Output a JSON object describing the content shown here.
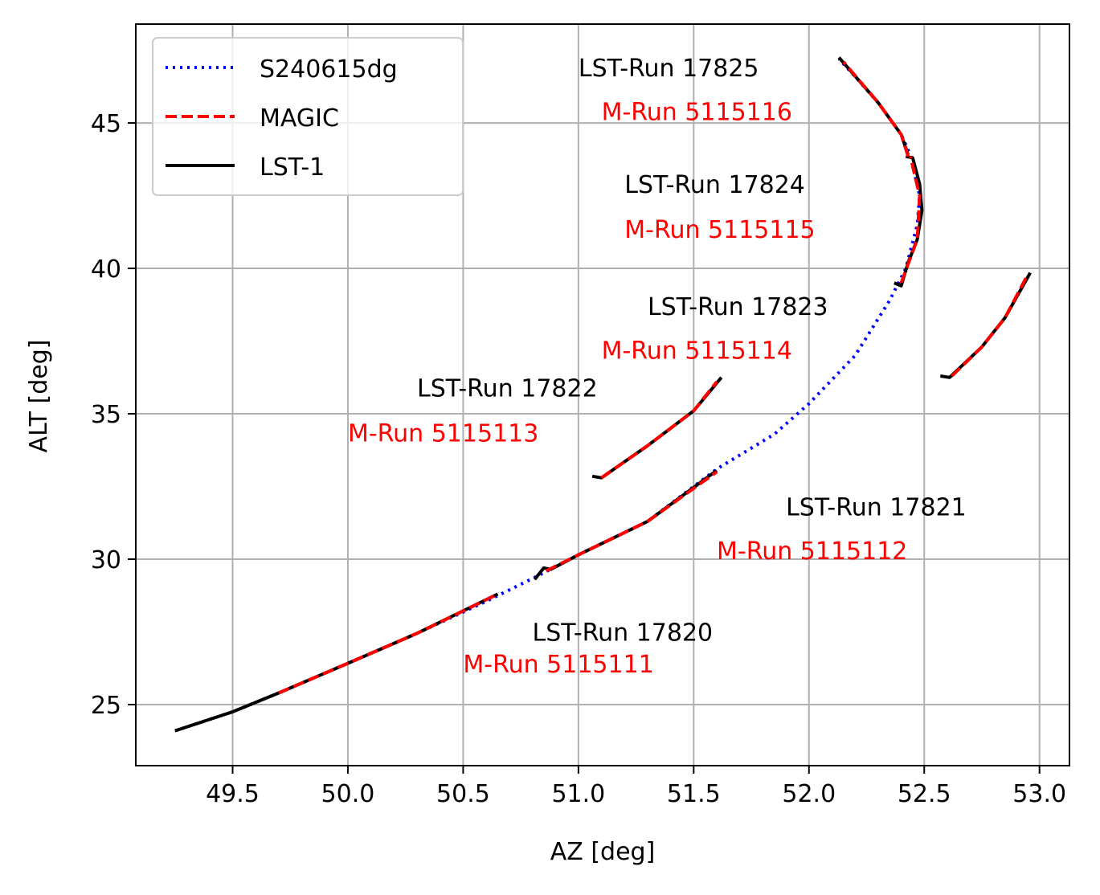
{
  "chart_data": {
    "type": "line",
    "xlabel": "AZ [deg]",
    "ylabel": "ALT [deg]",
    "xlim": [
      49.08,
      53.13
    ],
    "ylim": [
      22.9,
      48.4
    ],
    "x_ticks": [
      49.5,
      50.0,
      50.5,
      51.0,
      51.5,
      52.0,
      52.5,
      53.0
    ],
    "x_tick_labels": [
      "49.5",
      "50.0",
      "50.5",
      "51.0",
      "51.5",
      "52.0",
      "52.5",
      "53.0"
    ],
    "y_ticks": [
      25,
      30,
      35,
      40,
      45
    ],
    "y_tick_labels": [
      "25",
      "30",
      "35",
      "40",
      "45"
    ],
    "grid": true,
    "legend_position": "top-left",
    "series": [
      {
        "name": "S240615dg",
        "color": "#0000ff",
        "style": "dotted",
        "points": [
          [
            49.25,
            24.1
          ],
          [
            49.5,
            24.75
          ],
          [
            49.7,
            25.4
          ],
          [
            50.0,
            26.42
          ],
          [
            50.3,
            27.45
          ],
          [
            50.6,
            28.55
          ],
          [
            50.83,
            29.45
          ],
          [
            51.0,
            30.15
          ],
          [
            51.3,
            31.3
          ],
          [
            51.6,
            33.1
          ],
          [
            51.85,
            34.3
          ],
          [
            52.0,
            35.35
          ],
          [
            52.2,
            37.0
          ],
          [
            52.35,
            38.9
          ],
          [
            52.42,
            40.0
          ],
          [
            52.47,
            41.5
          ],
          [
            52.48,
            42.5
          ],
          [
            52.44,
            43.9
          ],
          [
            52.4,
            44.6
          ],
          [
            52.3,
            45.7
          ],
          [
            52.2,
            46.6
          ],
          [
            52.13,
            47.2
          ]
        ]
      },
      {
        "name": "MAGIC",
        "color": "#ff0000",
        "style": "dashed",
        "segments": [
          [
            [
              49.7,
              25.4
            ],
            [
              50.0,
              26.42
            ],
            [
              50.3,
              27.45
            ],
            [
              50.65,
              28.8
            ]
          ],
          [
            [
              50.86,
              29.6
            ],
            [
              51.0,
              30.15
            ],
            [
              51.3,
              31.3
            ],
            [
              51.6,
              33.0
            ]
          ],
          [
            [
              51.1,
              32.8
            ],
            [
              51.3,
              33.9
            ],
            [
              51.5,
              35.1
            ],
            [
              51.6,
              36.1
            ]
          ],
          [
            [
              52.4,
              39.5
            ],
            [
              52.47,
              41.0
            ],
            [
              52.48,
              42.5
            ],
            [
              52.44,
              43.85
            ]
          ],
          [
            [
              52.43,
              43.85
            ],
            [
              52.4,
              44.6
            ],
            [
              52.3,
              45.7
            ],
            [
              52.15,
              47.1
            ]
          ],
          [
            [
              52.62,
              36.3
            ],
            [
              52.75,
              37.3
            ],
            [
              52.85,
              38.3
            ],
            [
              52.95,
              39.8
            ]
          ]
        ]
      },
      {
        "name": "LST-1",
        "color": "#000000",
        "style": "solid",
        "segments": [
          [
            [
              49.25,
              24.1
            ],
            [
              49.5,
              24.75
            ],
            [
              49.7,
              25.4
            ],
            [
              50.0,
              26.42
            ],
            [
              50.3,
              27.45
            ],
            [
              50.65,
              28.8
            ]
          ],
          [
            [
              50.81,
              29.3
            ],
            [
              50.85,
              29.7
            ],
            [
              50.88,
              29.65
            ],
            [
              51.0,
              30.15
            ],
            [
              51.3,
              31.3
            ],
            [
              51.6,
              33.05
            ]
          ],
          [
            [
              51.06,
              32.85
            ],
            [
              51.1,
              32.8
            ],
            [
              51.3,
              33.9
            ],
            [
              51.5,
              35.1
            ],
            [
              51.62,
              36.25
            ]
          ],
          [
            [
              52.37,
              39.5
            ],
            [
              52.4,
              39.4
            ],
            [
              52.43,
              40.2
            ],
            [
              52.47,
              41.0
            ],
            [
              52.49,
              42.0
            ],
            [
              52.48,
              42.9
            ],
            [
              52.45,
              43.8
            ],
            [
              52.42,
              43.85
            ]
          ],
          [
            [
              52.43,
              43.9
            ],
            [
              52.4,
              44.6
            ],
            [
              52.3,
              45.7
            ],
            [
              52.13,
              47.25
            ]
          ],
          [
            [
              52.57,
              36.3
            ],
            [
              52.61,
              36.25
            ],
            [
              52.75,
              37.3
            ],
            [
              52.85,
              38.3
            ],
            [
              52.96,
              39.85
            ]
          ]
        ]
      }
    ],
    "annotations": [
      {
        "text": "LST-Run 17825",
        "x": 51.0,
        "y": 46.6,
        "color": "#000000"
      },
      {
        "text": "M-Run 5115116",
        "x": 51.1,
        "y": 45.1,
        "color": "#ff0000"
      },
      {
        "text": "LST-Run 17824",
        "x": 51.2,
        "y": 42.6,
        "color": "#000000"
      },
      {
        "text": "M-Run 5115115",
        "x": 51.2,
        "y": 41.05,
        "color": "#ff0000"
      },
      {
        "text": "LST-Run 17823",
        "x": 51.3,
        "y": 38.4,
        "color": "#000000"
      },
      {
        "text": "M-Run 5115114",
        "x": 51.1,
        "y": 36.9,
        "color": "#ff0000"
      },
      {
        "text": "LST-Run 17822",
        "x": 50.3,
        "y": 35.6,
        "color": "#000000"
      },
      {
        "text": "M-Run 5115113",
        "x": 50.0,
        "y": 34.05,
        "color": "#ff0000"
      },
      {
        "text": "LST-Run 17821",
        "x": 51.9,
        "y": 31.5,
        "color": "#000000"
      },
      {
        "text": "M-Run 5115112",
        "x": 51.6,
        "y": 30.0,
        "color": "#ff0000"
      },
      {
        "text": "LST-Run 17820",
        "x": 50.8,
        "y": 27.2,
        "color": "#000000"
      },
      {
        "text": "M-Run 5115111",
        "x": 50.5,
        "y": 26.1,
        "color": "#ff0000"
      }
    ]
  }
}
